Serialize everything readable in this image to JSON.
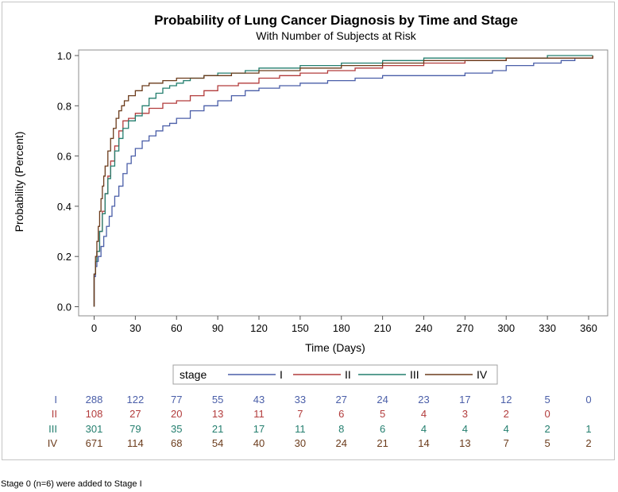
{
  "chart_data": {
    "type": "line",
    "title": "Probability of Lung Cancer Diagnosis by Time and Stage",
    "subtitle": "With Number of Subjects at Risk",
    "xlabel": "Time (Days)",
    "ylabel": "Probability (Percent)",
    "xlim": [
      -8,
      368
    ],
    "ylim": [
      0,
      1.0
    ],
    "x_ticks": [
      0,
      30,
      60,
      90,
      120,
      150,
      180,
      210,
      240,
      270,
      300,
      330,
      360
    ],
    "y_ticks": [
      0.0,
      0.2,
      0.4,
      0.6,
      0.8,
      1.0
    ],
    "y_tick_labels": [
      "0.0",
      "0.2",
      "0.4",
      "0.6",
      "0.8",
      "1.0"
    ],
    "step": true,
    "legend": {
      "title": "stage",
      "position": "bottom",
      "entries": [
        "I",
        "II",
        "III",
        "IV"
      ]
    },
    "series": [
      {
        "name": "I",
        "color": "#4a5ea8",
        "x": [
          0,
          1,
          2,
          3,
          5,
          7,
          9,
          11,
          13,
          15,
          18,
          21,
          24,
          27,
          30,
          35,
          40,
          45,
          50,
          55,
          60,
          70,
          80,
          90,
          100,
          110,
          120,
          135,
          150,
          170,
          190,
          210,
          240,
          270,
          290,
          300,
          320,
          340,
          350,
          363
        ],
        "y": [
          0.12,
          0.16,
          0.18,
          0.2,
          0.24,
          0.28,
          0.32,
          0.36,
          0.4,
          0.44,
          0.48,
          0.53,
          0.57,
          0.6,
          0.63,
          0.66,
          0.68,
          0.7,
          0.72,
          0.73,
          0.75,
          0.78,
          0.8,
          0.82,
          0.84,
          0.86,
          0.87,
          0.88,
          0.89,
          0.9,
          0.91,
          0.92,
          0.92,
          0.93,
          0.94,
          0.96,
          0.97,
          0.98,
          0.99,
          1.0
        ]
      },
      {
        "name": "II",
        "color": "#b23b3b",
        "x": [
          0,
          1,
          2,
          4,
          6,
          8,
          10,
          12,
          15,
          18,
          21,
          25,
          30,
          40,
          50,
          60,
          70,
          80,
          90,
          105,
          120,
          135,
          150,
          170,
          190,
          210,
          240,
          270,
          300,
          320,
          363
        ],
        "y": [
          0.13,
          0.18,
          0.22,
          0.3,
          0.38,
          0.45,
          0.52,
          0.58,
          0.64,
          0.7,
          0.74,
          0.75,
          0.77,
          0.79,
          0.81,
          0.82,
          0.84,
          0.86,
          0.88,
          0.89,
          0.91,
          0.92,
          0.93,
          0.94,
          0.95,
          0.96,
          0.97,
          0.98,
          0.99,
          0.99,
          1.0
        ]
      },
      {
        "name": "III",
        "color": "#237e6e",
        "x": [
          0,
          1,
          2,
          4,
          6,
          8,
          10,
          12,
          15,
          18,
          21,
          25,
          30,
          35,
          40,
          45,
          50,
          55,
          60,
          65,
          70,
          80,
          90,
          110,
          120,
          150,
          180,
          210,
          240,
          270,
          300,
          330,
          363
        ],
        "y": [
          0.13,
          0.18,
          0.22,
          0.3,
          0.37,
          0.45,
          0.51,
          0.56,
          0.62,
          0.67,
          0.71,
          0.74,
          0.76,
          0.8,
          0.83,
          0.85,
          0.87,
          0.88,
          0.89,
          0.9,
          0.91,
          0.92,
          0.93,
          0.94,
          0.95,
          0.96,
          0.97,
          0.98,
          0.99,
          0.99,
          0.99,
          1.0,
          1.0
        ]
      },
      {
        "name": "IV",
        "color": "#6b3b1b",
        "x": [
          0,
          1,
          2,
          3,
          4,
          5,
          6,
          7,
          8,
          10,
          12,
          14,
          16,
          18,
          20,
          22,
          25,
          30,
          35,
          40,
          50,
          60,
          80,
          100,
          120,
          150,
          180,
          210,
          240,
          270,
          300,
          330,
          363
        ],
        "y": [
          0.13,
          0.2,
          0.26,
          0.32,
          0.38,
          0.43,
          0.48,
          0.52,
          0.56,
          0.62,
          0.67,
          0.71,
          0.75,
          0.78,
          0.8,
          0.82,
          0.84,
          0.86,
          0.88,
          0.89,
          0.9,
          0.91,
          0.92,
          0.93,
          0.94,
          0.95,
          0.96,
          0.97,
          0.98,
          0.98,
          0.99,
          0.99,
          1.0
        ]
      }
    ],
    "at_risk": {
      "times": [
        0,
        30,
        60,
        90,
        120,
        150,
        180,
        210,
        240,
        270,
        300,
        330,
        360
      ],
      "rows": [
        {
          "label": "I",
          "color": "#4a5ea8",
          "values": [
            "288",
            "122",
            "77",
            "55",
            "43",
            "33",
            "27",
            "24",
            "23",
            "17",
            "12",
            "5",
            "0"
          ]
        },
        {
          "label": "II",
          "color": "#b23b3b",
          "values": [
            "108",
            "27",
            "20",
            "13",
            "11",
            "7",
            "6",
            "5",
            "4",
            "3",
            "2",
            "0",
            ""
          ]
        },
        {
          "label": "III",
          "color": "#237e6e",
          "values": [
            "301",
            "79",
            "35",
            "21",
            "17",
            "11",
            "8",
            "6",
            "4",
            "4",
            "4",
            "2",
            "1"
          ]
        },
        {
          "label": "IV",
          "color": "#6b3b1b",
          "values": [
            "671",
            "114",
            "68",
            "54",
            "40",
            "30",
            "24",
            "21",
            "14",
            "13",
            "7",
            "5",
            "2"
          ]
        }
      ]
    }
  },
  "footnote": "Stage 0 (n=6) were added to Stage I"
}
